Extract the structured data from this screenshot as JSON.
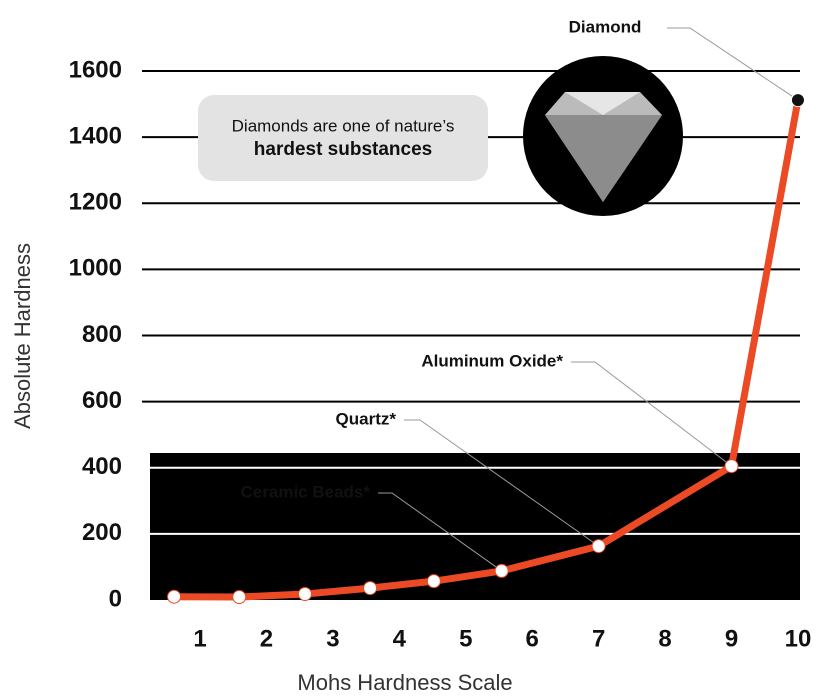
{
  "chart_data": {
    "type": "line",
    "x_label": "Mohs Hardness Scale",
    "y_label": "Absolute Hardness",
    "callout": [
      "Diamonds are one of nature’s",
      "hardest substances"
    ],
    "annotations": [
      {
        "text": "Diamond"
      },
      {
        "text": "Aluminum Oxide*"
      },
      {
        "text": "Quartz*"
      },
      {
        "text": "Ceramic Beads*"
      }
    ],
    "x": [
      0.61,
      1.59,
      2.58,
      3.56,
      4.52,
      5.54,
      7,
      9,
      10
    ],
    "series": [
      {
        "color": "#ec4a24",
        "values": [
          10,
          9,
          18,
          36,
          57,
          88,
          163,
          405,
          1512
        ],
        "marker_colors": [
          "#ffffff",
          "#ffffff",
          "#ffffff",
          "#ffffff",
          "#ffffff",
          "#ffffff",
          "#ffffff",
          "#ffffff",
          "#111111"
        ]
      }
    ],
    "xlim": [
      0.3,
      10.1
    ],
    "xticks": [
      1,
      2,
      3,
      4,
      5,
      6,
      7,
      8,
      9,
      10
    ],
    "ylim": [
      0,
      1600
    ],
    "yticks": [
      0,
      200,
      400,
      600,
      800,
      1000,
      1200,
      1400,
      1600
    ],
    "grid": true
  }
}
